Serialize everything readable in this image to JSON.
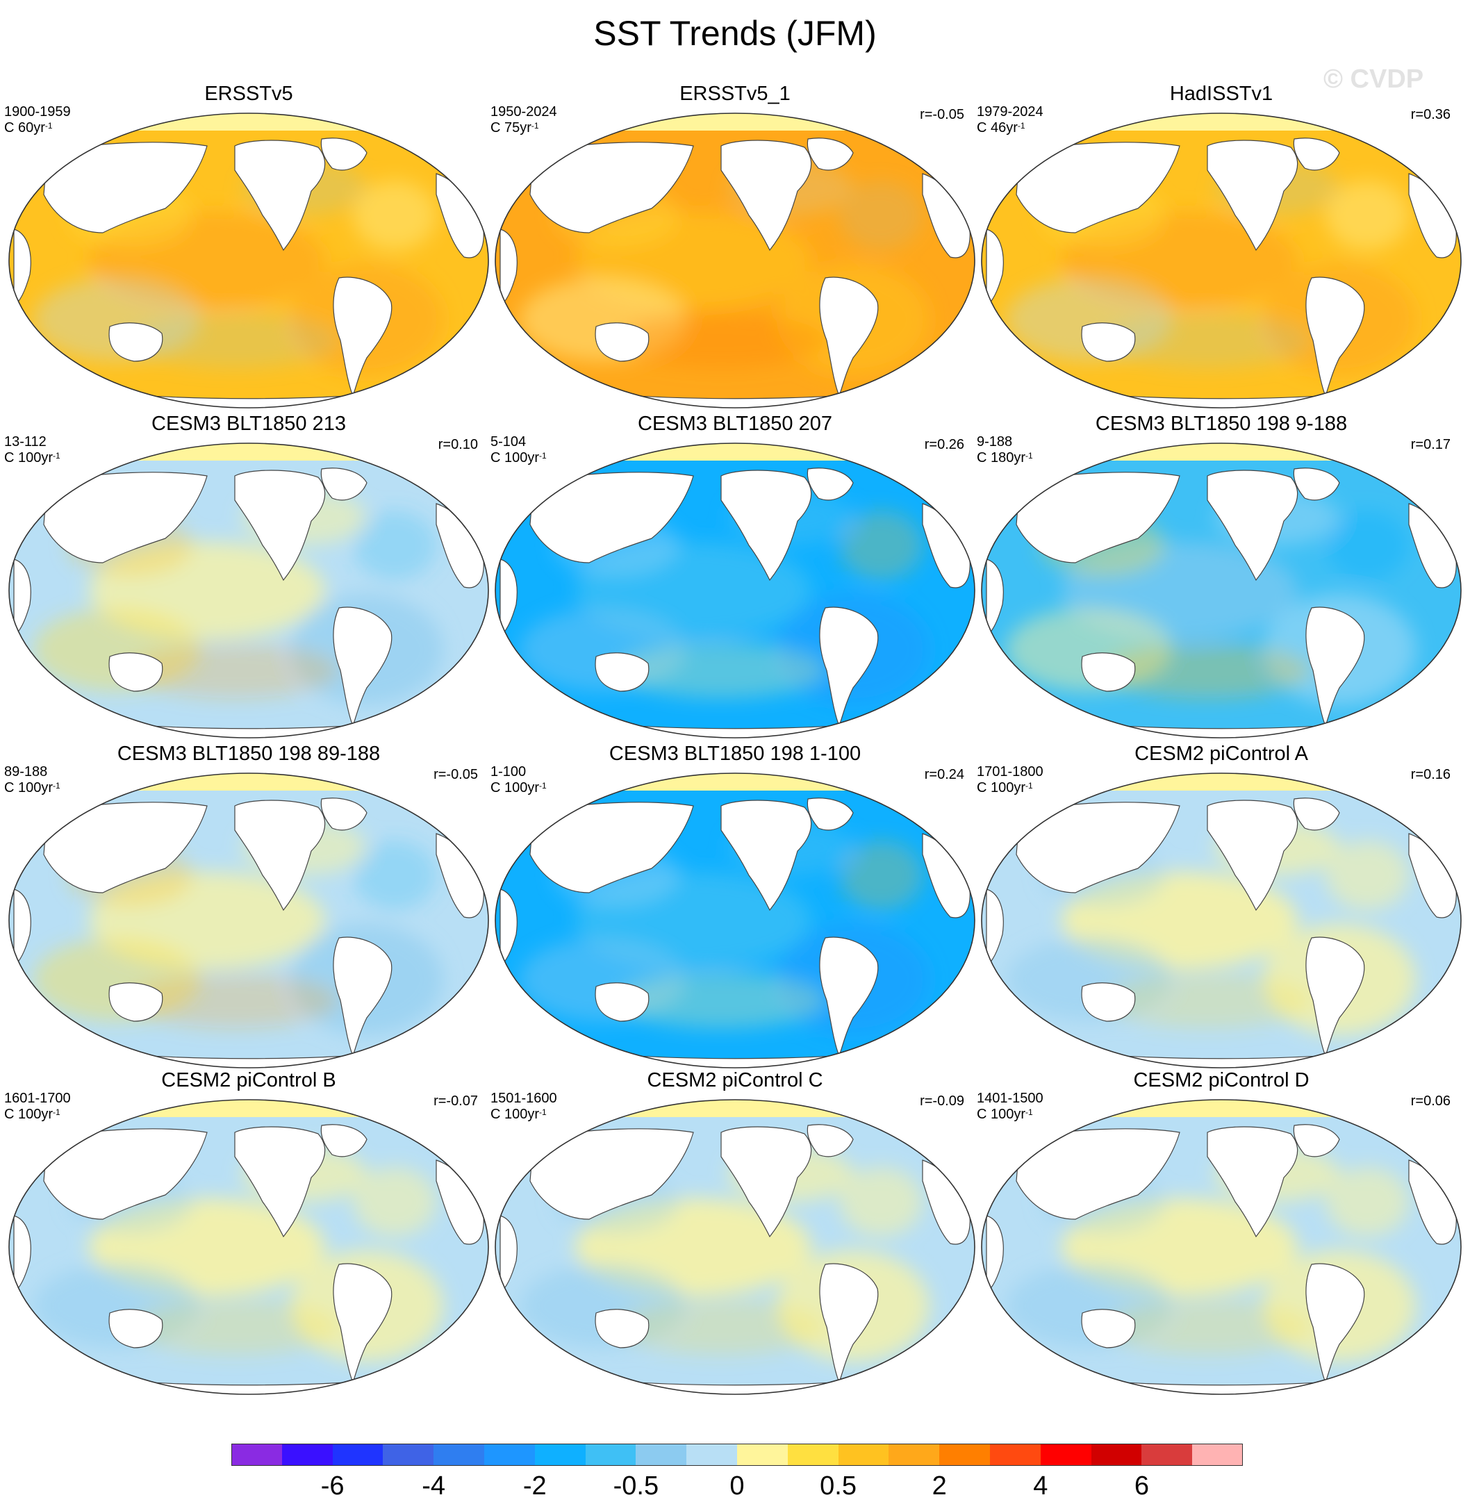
{
  "title": "SST Trends (JFM)",
  "watermark": "© CVDP",
  "panels": [
    {
      "title": "ERSSTv5",
      "period": "1900-1959",
      "scale": "C 60yr",
      "scale_exp": "-1",
      "corr": "",
      "palette": "warm"
    },
    {
      "title": "ERSSTv5_1",
      "period": "1950-2024",
      "scale": "C 75yr",
      "scale_exp": "-1",
      "corr": "r=-0.05",
      "palette": "hot"
    },
    {
      "title": "HadISSTv1",
      "period": "1979-2024",
      "scale": "C 46yr",
      "scale_exp": "-1",
      "corr": "r=0.36",
      "palette": "warm"
    },
    {
      "title": "CESM3 BLT1850 213",
      "period": "13-112",
      "scale": "C 100yr",
      "scale_exp": "-1",
      "corr": "r=0.10",
      "palette": "mixed"
    },
    {
      "title": "CESM3 BLT1850 207",
      "period": "5-104",
      "scale": "C 100yr",
      "scale_exp": "-1",
      "corr": "r=0.26",
      "palette": "cold"
    },
    {
      "title": "CESM3 BLT1850 198 9-188",
      "period": "9-188",
      "scale": "C 180yr",
      "scale_exp": "-1",
      "corr": "r=0.17",
      "palette": "coolmix"
    },
    {
      "title": "CESM3 BLT1850 198 89-188",
      "period": "89-188",
      "scale": "C 100yr",
      "scale_exp": "-1",
      "corr": "r=-0.05",
      "palette": "mixed"
    },
    {
      "title": "CESM3 BLT1850 198 1-100",
      "period": "1-100",
      "scale": "C 100yr",
      "scale_exp": "-1",
      "corr": "r=0.24",
      "palette": "cold"
    },
    {
      "title": "CESM2 piControl A",
      "period": "1701-1800",
      "scale": "C 100yr",
      "scale_exp": "-1",
      "corr": "r=0.16",
      "palette": "neutral"
    },
    {
      "title": "CESM2 piControl B",
      "period": "1601-1700",
      "scale": "C 100yr",
      "scale_exp": "-1",
      "corr": "r=-0.07",
      "palette": "neutral"
    },
    {
      "title": "CESM2 piControl C",
      "period": "1501-1600",
      "scale": "C 100yr",
      "scale_exp": "-1",
      "corr": "r=-0.09",
      "palette": "neutral"
    },
    {
      "title": "CESM2 piControl D",
      "period": "1401-1500",
      "scale": "C 100yr",
      "scale_exp": "-1",
      "corr": "r=0.06",
      "palette": "neutral"
    }
  ],
  "colorbar": {
    "colors": [
      "#8a2be2",
      "#3a10ff",
      "#1f34ff",
      "#3f63e6",
      "#2f7ef0",
      "#1e96ff",
      "#0fb0ff",
      "#3fc0f5",
      "#8ccbf0",
      "#b8dff5",
      "#fff59b",
      "#ffe040",
      "#ffc220",
      "#ffa81a",
      "#ff7f00",
      "#ff4a10",
      "#ff0000",
      "#d10000",
      "#d93c3c",
      "#ffb3b3"
    ],
    "labels": [
      "-6",
      "-4",
      "-2",
      "-0.5",
      "0",
      "0.5",
      "2",
      "4",
      "6"
    ]
  }
}
